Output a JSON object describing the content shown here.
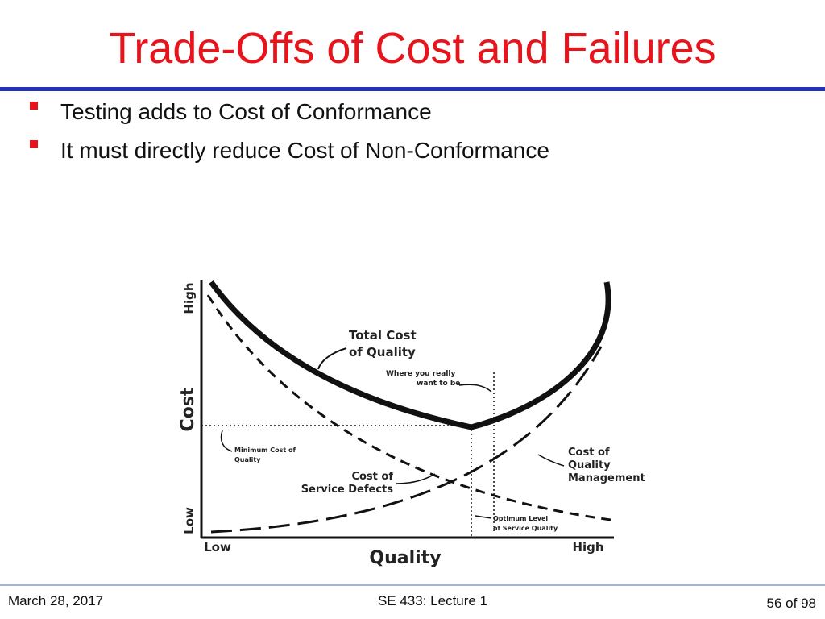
{
  "header": {
    "title": "Trade-Offs of Cost and Failures"
  },
  "bullets": [
    "Testing adds to Cost of Conformance",
    "It must directly reduce Cost of Non-Conformance"
  ],
  "figure": {
    "y_axis_high": "High",
    "y_axis_label": "Cost",
    "y_axis_low": "Low",
    "x_axis_low": "Low",
    "x_axis_label": "Quality",
    "x_axis_high": "High",
    "total_cost": [
      "Total Cost",
      "of Quality"
    ],
    "where_you_want": [
      "Where you really",
      "want to be"
    ],
    "minimum_cost": [
      "Minimum Cost of",
      "Quality"
    ],
    "service_defects": [
      "Cost of",
      "Service Defects"
    ],
    "quality_management": [
      "Cost of",
      "Quality",
      "Management"
    ],
    "optimum_level": [
      "Optimum Level",
      "of Service Quality"
    ]
  },
  "footer": {
    "date": "March 28, 2017",
    "course": "SE 433: Lecture 1",
    "page": "56 of 98"
  }
}
